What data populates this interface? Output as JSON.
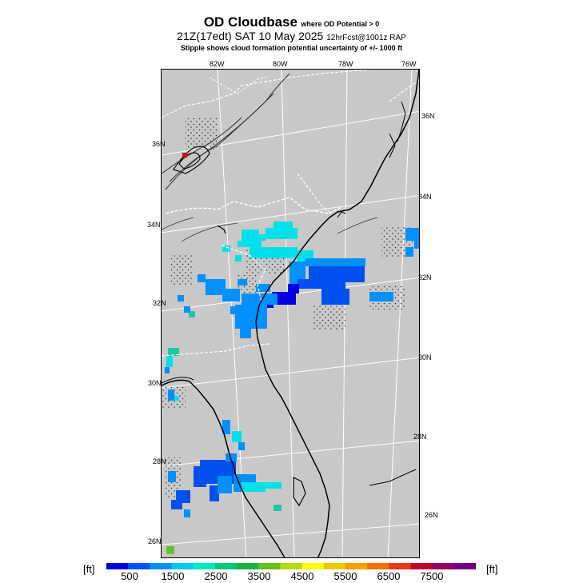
{
  "header": {
    "title": "OD Cloudbase",
    "title_note": "where OD Potential > 0",
    "line2_main": "21Z(17edt) SAT 10 May 2025",
    "line2_right": "12hrFcst@1001z RAP",
    "line3": "Stipple shows cloud formation potential uncertainty of +/-  1000 ft"
  },
  "map": {
    "background": "#c8c8c8",
    "lon_labels": [
      "82W",
      "80W",
      "78W",
      "76W"
    ],
    "lat_labels_left": [
      "36N",
      "34N",
      "32N",
      "30N",
      "28N",
      "26N"
    ],
    "lat_labels_right": [
      "36N",
      "34N",
      "32N",
      "30N",
      "28N",
      "26N"
    ]
  },
  "legend": {
    "unit": "[ft]",
    "tick_labels": [
      "500",
      "1500",
      "2500",
      "3500",
      "4500",
      "5500",
      "6500",
      "7500"
    ],
    "colors": [
      "#0000e0",
      "#0050f0",
      "#0090ff",
      "#00c8f0",
      "#00e8c8",
      "#00c878",
      "#20b040",
      "#68c020",
      "#b8d810",
      "#ffff00",
      "#f0c800",
      "#f8a000",
      "#f07000",
      "#e83818",
      "#c00030",
      "#900060",
      "#700080"
    ]
  }
}
